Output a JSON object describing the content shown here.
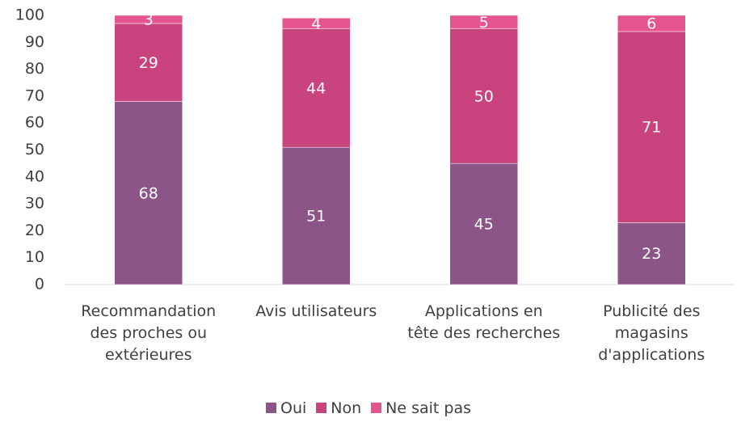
{
  "chart_data": {
    "type": "stacked_bar",
    "categories": [
      "Recommandation des proches ou extérieures",
      "Avis utilisateurs",
      "Applications en tête des recherches",
      "Publicité des magasins d'applications"
    ],
    "series": [
      {
        "name": "Oui",
        "color": "#8b5587",
        "values": [
          68,
          51,
          45,
          23
        ]
      },
      {
        "name": "Non",
        "color": "#c9437f",
        "values": [
          29,
          44,
          50,
          71
        ]
      },
      {
        "name": "Ne sait pas",
        "color": "#e6558f",
        "values": [
          3,
          4,
          5,
          6
        ]
      }
    ],
    "ylim": [
      0,
      100
    ],
    "yticks": [
      0,
      10,
      20,
      30,
      40,
      50,
      60,
      70,
      80,
      90,
      100
    ],
    "grid": false,
    "legend": "bottom"
  }
}
